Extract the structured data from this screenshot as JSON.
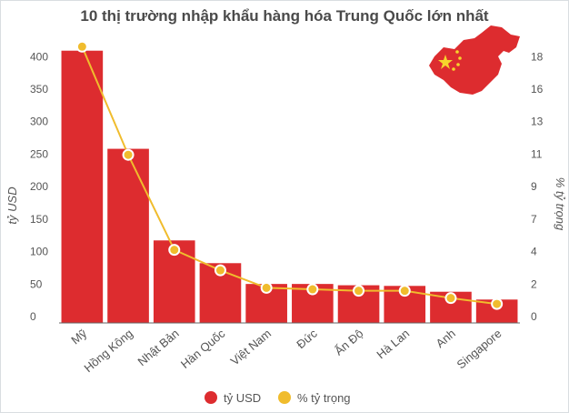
{
  "chart_data": {
    "type": "bar",
    "title": "10 thị trường nhập khẩu hàng hóa Trung Quốc lớn nhất",
    "categories": [
      "Mỹ",
      "Hồng Kông",
      "Nhật Bản",
      "Hàn Quốc",
      "Việt Nam",
      "Đức",
      "Ấn Độ",
      "Hà Lan",
      "Anh",
      "Singapore"
    ],
    "series": [
      {
        "name": "tỷ USD",
        "type": "bar",
        "axis": "left",
        "color": "#dd2c2f",
        "values": [
          419,
          268,
          127,
          92,
          60,
          60,
          58,
          57,
          48,
          36
        ]
      },
      {
        "name": "% tỷ trọng",
        "type": "line",
        "axis": "right",
        "color": "#f0bc2d",
        "values": [
          18.9,
          11.5,
          5.0,
          3.6,
          2.4,
          2.3,
          2.2,
          2.2,
          1.7,
          1.3
        ]
      }
    ],
    "ylabel": "tỷ USD",
    "ylabel_right": "% tỷ trọng",
    "yticks_left": [
      0,
      50,
      100,
      150,
      200,
      250,
      300,
      350,
      400
    ],
    "yticks_right": [
      "0",
      "2",
      "4",
      "7",
      "9",
      "11",
      "13",
      "16",
      "18"
    ],
    "ylim": [
      0,
      420
    ],
    "ylim_right": [
      0,
      18.67
    ],
    "grid": false,
    "legend_position": "bottom"
  },
  "colors": {
    "bar": "#dd2c2f",
    "line": "#f0bc2d",
    "axis_text": "#555555",
    "title": "#4a4a4a"
  },
  "decorations": {
    "flag_icon": "china-map-flag-icon"
  }
}
